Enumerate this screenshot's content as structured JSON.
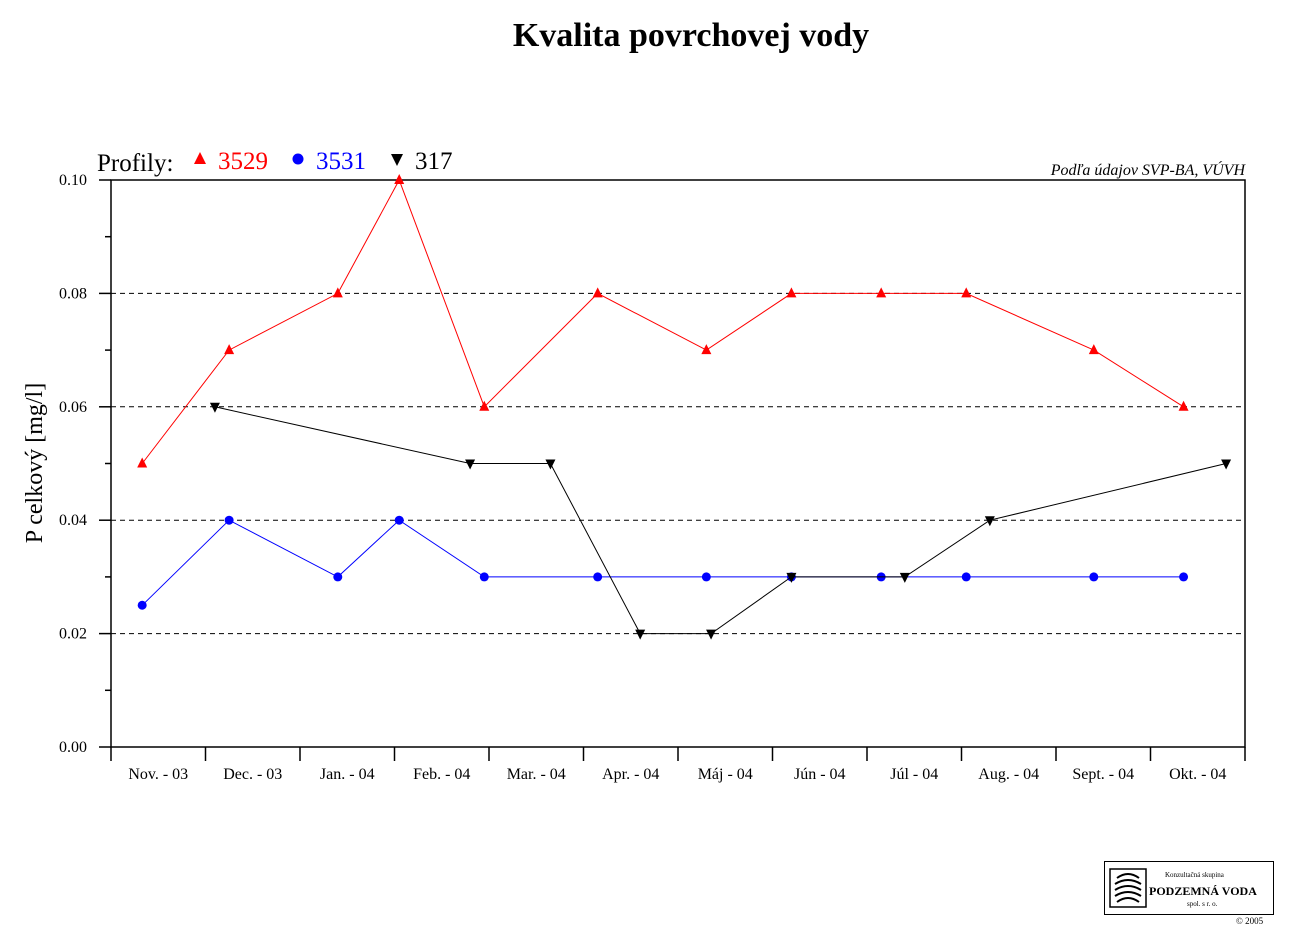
{
  "chart_data": {
    "type": "line",
    "title": "Kvalita povrchovej vody",
    "ylabel": "P celkový [mg/l]",
    "xlabel": "",
    "source_note": "Podľa údajov SVP-BA, VÚVH",
    "legend_prefix": "Profily:",
    "legend_position": "top-left",
    "ylim": [
      0,
      0.1
    ],
    "y_ticks": [
      "0.00",
      "0.02",
      "0.04",
      "0.06",
      "0.08",
      "0.10"
    ],
    "grid": "horizontal dashed",
    "categories": [
      "Nov. - 03",
      "Dec. - 03",
      "Jan. - 04",
      "Feb. - 04",
      "Mar. - 04",
      "Apr. - 04",
      "Máj - 04",
      "Jún - 04",
      "Júl - 04",
      "Aug. - 04",
      "Sept. - 04",
      "Okt. - 04"
    ],
    "x_range": [
      0,
      12
    ],
    "series": [
      {
        "name": "3529",
        "color": "#ff0000",
        "marker": "triangle-up",
        "points": [
          [
            0.33,
            0.05
          ],
          [
            1.25,
            0.07
          ],
          [
            2.4,
            0.08
          ],
          [
            3.05,
            0.1
          ],
          [
            3.95,
            0.06
          ],
          [
            5.15,
            0.08
          ],
          [
            6.3,
            0.07
          ],
          [
            7.2,
            0.08
          ],
          [
            8.15,
            0.08
          ],
          [
            9.05,
            0.08
          ],
          [
            10.4,
            0.07
          ],
          [
            11.35,
            0.06
          ]
        ]
      },
      {
        "name": "3531",
        "color": "#0000ff",
        "marker": "circle",
        "points": [
          [
            0.33,
            0.025
          ],
          [
            1.25,
            0.04
          ],
          [
            2.4,
            0.03
          ],
          [
            3.05,
            0.04
          ],
          [
            3.95,
            0.03
          ],
          [
            5.15,
            0.03
          ],
          [
            6.3,
            0.03
          ],
          [
            7.2,
            0.03
          ],
          [
            8.15,
            0.03
          ],
          [
            9.05,
            0.03
          ],
          [
            10.4,
            0.03
          ],
          [
            11.35,
            0.03
          ]
        ]
      },
      {
        "name": "317",
        "color": "#000000",
        "marker": "triangle-down",
        "points": [
          [
            1.1,
            0.06
          ],
          [
            3.8,
            0.05
          ],
          [
            4.65,
            0.05
          ],
          [
            5.6,
            0.02
          ],
          [
            6.35,
            0.02
          ],
          [
            7.2,
            0.03
          ],
          [
            8.4,
            0.03
          ],
          [
            9.3,
            0.04
          ],
          [
            11.8,
            0.05
          ]
        ]
      }
    ]
  },
  "logo": {
    "line1": "Konzultačná skupina",
    "line2": "PODZEMNÁ VODA",
    "line3": "spol. s r. o."
  },
  "copyright": "© 2005"
}
